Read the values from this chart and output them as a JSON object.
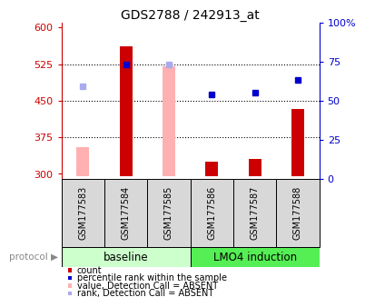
{
  "title": "GDS2788 / 242913_at",
  "samples": [
    "GSM177583",
    "GSM177584",
    "GSM177585",
    "GSM177586",
    "GSM177587",
    "GSM177588"
  ],
  "groups": {
    "baseline": [
      0,
      1,
      2
    ],
    "LMO4 induction": [
      3,
      4,
      5
    ]
  },
  "ylim_left": [
    290,
    610
  ],
  "ylim_right": [
    0,
    100
  ],
  "yticks_left": [
    300,
    375,
    450,
    525,
    600
  ],
  "yticks_right": [
    0,
    25,
    50,
    75,
    100
  ],
  "ytick_labels_right": [
    "0",
    "25",
    "50",
    "75",
    "100%"
  ],
  "bar_heights_count": [
    null,
    561,
    null,
    325,
    330,
    432
  ],
  "bar_heights_absent": [
    355,
    null,
    520,
    null,
    null,
    null
  ],
  "rank_points_present": [
    null,
    525,
    null,
    462,
    467,
    492
  ],
  "rank_points_absent": [
    480,
    null,
    525,
    null,
    null,
    null
  ],
  "is_absent": [
    true,
    false,
    true,
    false,
    false,
    false
  ],
  "bar_base": 295,
  "colors": {
    "red_present": "#cc0000",
    "red_absent": "#ffb0b0",
    "blue_present": "#0000cc",
    "blue_absent": "#aaaaee",
    "group_baseline": "#ccffcc",
    "group_lmo4": "#55ee55",
    "axis_left_color": "#cc0000",
    "axis_right_color": "#0000cc",
    "sample_box_bg": "#d8d8d8"
  },
  "legend_items": [
    {
      "color": "#cc0000",
      "label": "count"
    },
    {
      "color": "#0000cc",
      "label": "percentile rank within the sample"
    },
    {
      "color": "#ffb0b0",
      "label": "value, Detection Call = ABSENT"
    },
    {
      "color": "#aaaaee",
      "label": "rank, Detection Call = ABSENT"
    }
  ]
}
